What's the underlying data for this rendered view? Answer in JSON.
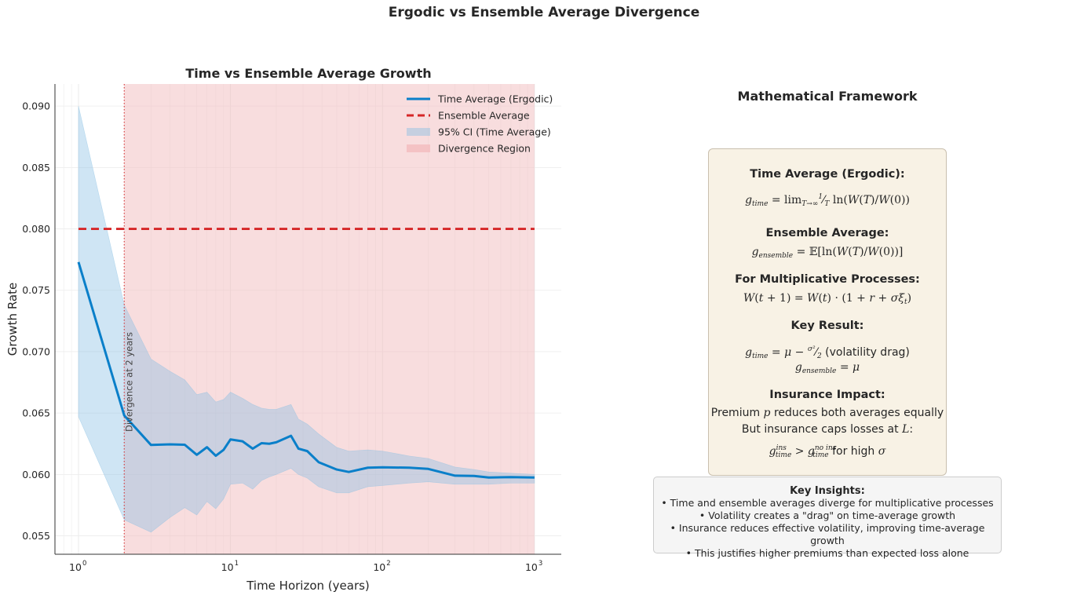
{
  "figure": {
    "suptitle": "Ergodic vs Ensemble Average Divergence"
  },
  "chart_data": {
    "type": "line",
    "title": "Time vs Ensemble Average Growth",
    "xlabel": "Time Horizon (years)",
    "ylabel": "Growth Rate",
    "xscale": "log",
    "xlim": [
      0.7,
      1500
    ],
    "ylim": [
      0.0535,
      0.0918
    ],
    "xticks": [
      1,
      10,
      100,
      1000
    ],
    "xtick_labels": [
      "10",
      "10",
      "10",
      "10"
    ],
    "xtick_exponents": [
      "0",
      "1",
      "2",
      "3"
    ],
    "yticks": [
      0.055,
      0.06,
      0.065,
      0.07,
      0.075,
      0.08,
      0.085,
      0.09
    ],
    "ytick_labels": [
      "0.055",
      "0.060",
      "0.065",
      "0.070",
      "0.075",
      "0.080",
      "0.085",
      "0.090"
    ],
    "grid": true,
    "legend_position": "top-right",
    "x": [
      1,
      2,
      3,
      4,
      5,
      6,
      7,
      8,
      9,
      10,
      12,
      14,
      16,
      18,
      20,
      25,
      28,
      32,
      38,
      50,
      60,
      80,
      100,
      150,
      200,
      300,
      400,
      500,
      700,
      1000
    ],
    "series": [
      {
        "name": "Time Average (Ergodic)",
        "style": "solid",
        "color": "#0a7fc9",
        "values": [
          0.0773,
          0.0648,
          0.0624,
          0.06245,
          0.06242,
          0.0616,
          0.06222,
          0.06152,
          0.062,
          0.06285,
          0.0627,
          0.0621,
          0.06255,
          0.0625,
          0.06262,
          0.06315,
          0.0621,
          0.0619,
          0.061,
          0.0604,
          0.0602,
          0.06055,
          0.06058,
          0.06055,
          0.06045,
          0.0599,
          0.05988,
          0.05975,
          0.05978,
          0.05975
        ]
      },
      {
        "name": "Ensemble Average",
        "style": "dashed",
        "color": "#d62728",
        "x": [
          1,
          1000
        ],
        "values": [
          0.08,
          0.08
        ]
      }
    ],
    "bands": [
      {
        "name": "95% CI (Time Average)",
        "color": "#87bfe3",
        "x": [
          1,
          2,
          3,
          4,
          5,
          6,
          7,
          8,
          9,
          10,
          12,
          14,
          16,
          18,
          20,
          25,
          28,
          32,
          38,
          50,
          60,
          80,
          100,
          150,
          200,
          300,
          400,
          500,
          700,
          1000
        ],
        "lower": [
          0.0647,
          0.0563,
          0.0553,
          0.0565,
          0.0573,
          0.0567,
          0.0578,
          0.0572,
          0.058,
          0.0592,
          0.0593,
          0.0588,
          0.0595,
          0.0598,
          0.06,
          0.0605,
          0.06,
          0.0597,
          0.059,
          0.0585,
          0.0585,
          0.059,
          0.0591,
          0.0593,
          0.0594,
          0.0592,
          0.0592,
          0.0592,
          0.0593,
          0.0593
        ],
        "upper": [
          0.09,
          0.0738,
          0.0694,
          0.0684,
          0.0677,
          0.0665,
          0.0667,
          0.0659,
          0.0661,
          0.0667,
          0.0662,
          0.0657,
          0.0654,
          0.0653,
          0.0653,
          0.0657,
          0.0645,
          0.0641,
          0.0633,
          0.0622,
          0.0619,
          0.062,
          0.0619,
          0.0615,
          0.0613,
          0.0606,
          0.0604,
          0.0602,
          0.0601,
          0.06
        ]
      }
    ],
    "regions": [
      {
        "name": "Divergence Region",
        "x_from": 2,
        "x_to": 1000,
        "color": "#f2bcbd"
      }
    ],
    "vline": {
      "x": 2,
      "color": "#d62728",
      "style": "dotted"
    },
    "annotation": "Divergence at 2 years"
  },
  "framework": {
    "title": "Mathematical Framework",
    "time_average_head": "Time Average (Ergodic):",
    "time_average_formula": "g_time = lim_{T→∞} (1/T) ln(W(T)/W(0))",
    "ensemble_head": "Ensemble Average:",
    "ensemble_formula": "g_ensemble = 𝔼[ln(W(T)/W(0))]",
    "multiplicative_head": "For Multiplicative Processes:",
    "multiplicative_formula": "W(t + 1) = W(t) · (1 + r + σξ_t)",
    "key_result_head": "Key Result:",
    "key_result_formula_1": "g_time = μ − σ²/2 (volatility drag)",
    "key_result_formula_2": "g_ensemble = μ",
    "insurance_head": "Insurance Impact:",
    "insurance_line_1": "Premium p reduces both averages equally",
    "insurance_line_2": "But insurance caps losses at L:",
    "insurance_line_3": "g_time^ins > g_time^no ins for high σ"
  },
  "insights": {
    "head": "Key Insights:",
    "items": [
      "• Time and ensemble averages diverge for multiplicative processes",
      "• Volatility creates a \"drag\" on time-average growth",
      "• Insurance reduces effective volatility, improving time-average growth",
      "• This justifies higher premiums than expected loss alone"
    ]
  }
}
